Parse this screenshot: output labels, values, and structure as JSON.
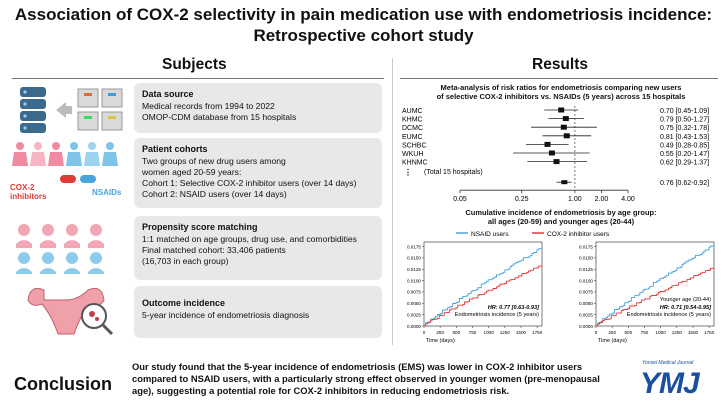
{
  "title": {
    "line1": "Association of COX-2 selectivity in pain medication use with endometriosis incidence:",
    "line2": "Retrospective cohort study"
  },
  "sections": {
    "subjects": "Subjects",
    "results": "Results"
  },
  "cards": [
    {
      "heading": "Data source",
      "lines": [
        "Medical records from 1994 to 2022",
        "OMOP-CDM database from 15 hospitals"
      ]
    },
    {
      "heading": "Patient cohorts",
      "lines": [
        "Two groups of new drug users among",
        "women aged 20-59 years:",
        "Cohort 1: Selective COX-2 inhibitor users (over 14 days)",
        "Cohort 2: NSAID users (over 14 days)"
      ]
    },
    {
      "heading": "Propensity score matching",
      "lines": [
        "1:1 matched on age groups, drug use, and comorbidities",
        "Final matched cohort: 33,406 patients",
        "(16,703 in each group)"
      ]
    },
    {
      "heading": "Outcome incidence",
      "lines": [
        "5-year incidence of endometriosis diagnosis"
      ]
    }
  ],
  "icon_labels": {
    "cox2": "COX-2",
    "inhibitors": "inhibitors",
    "nsaids": "NSAIDs"
  },
  "colors": {
    "cox2_red": "#e03b3b",
    "nsaid_blue": "#4aa3d9",
    "accent_blue": "#1a4fa0"
  },
  "forest": {
    "title_line1": "Meta-analysis of risk ratios for endometriosis comparing new users",
    "title_line2": "of selective COX-2 inhibitors vs. NSAIDs (5 years) across 15 hospitals",
    "rows": [
      {
        "label": "AUMC",
        "est": 0.7,
        "lo": 0.45,
        "hi": 1.09,
        "text": "0.70 [0.45-1.09]"
      },
      {
        "label": "KHMC",
        "est": 0.79,
        "lo": 0.5,
        "hi": 1.27,
        "text": "0.79 [0.50-1.27]"
      },
      {
        "label": "DCMC",
        "est": 0.75,
        "lo": 0.32,
        "hi": 1.78,
        "text": "0.75 [0.32-1.78]"
      },
      {
        "label": "EUMC",
        "est": 0.81,
        "lo": 0.43,
        "hi": 1.53,
        "text": "0.81 [0.43-1.53]"
      },
      {
        "label": "SCHBC",
        "est": 0.49,
        "lo": 0.28,
        "hi": 0.85,
        "text": "0.49 [0.28-0.85]"
      },
      {
        "label": "WKUH",
        "est": 0.55,
        "lo": 0.2,
        "hi": 1.47,
        "text": "0.55 [0.20-1.47]"
      },
      {
        "label": "KHNMC",
        "est": 0.62,
        "lo": 0.29,
        "hi": 1.37,
        "text": "0.62 [0.29-1.37]"
      }
    ],
    "ellipsis": "⋮",
    "total_label": "(Total 15 hospitals)",
    "summary": {
      "est": 0.76,
      "lo": 0.62,
      "hi": 0.92,
      "text": "0.76 [0.62-0.92]"
    },
    "ticks": [
      "0.05",
      "0.25",
      "1.00",
      "2.00",
      "4.00"
    ]
  },
  "cumulative": {
    "title_line1": "Cumulative incidence of endometriosis by age group:",
    "title_line2": "all ages (20-59) and younger ages (20-44)",
    "legend": {
      "nsaid": "NSAID users",
      "cox2": "COX-2 inhibitor users"
    },
    "left": {
      "hr": "HR: 0.77 [0.63-0.93]",
      "caption": "Endometriosis incidence (5 years)",
      "nsaid_end": 0.0172,
      "cox2_end": 0.0133
    },
    "right": {
      "subtitle": "Younger age (20-44)",
      "hr": "HR: 0.71 [0.54-0.95]",
      "caption": "Endometriosis incidence (5 years)",
      "nsaid_end": 0.0178,
      "cox2_end": 0.0128
    },
    "xlabel": "Time (days)",
    "xticks": [
      "0",
      "250",
      "500",
      "750",
      "1000",
      "1250",
      "1500",
      "1750"
    ],
    "yticks": [
      "0.0000",
      "0.0025",
      "0.0050",
      "0.0075",
      "0.0100",
      "0.0125",
      "0.0150",
      "0.0175"
    ]
  },
  "conclusion": {
    "label": "Conclusion",
    "text": "Our study found that the 5-year incidence of endometriosis (EMS) was lower in COX-2 inhibitor users compared to NSAID users, with a particularly strong effect observed in younger women (pre-menopausal age), suggesting a potential role for COX-2 inhibitors in reducing endometriosis risk."
  },
  "journal": {
    "small": "Yonsei Medical Journal",
    "logo": "YMJ"
  }
}
